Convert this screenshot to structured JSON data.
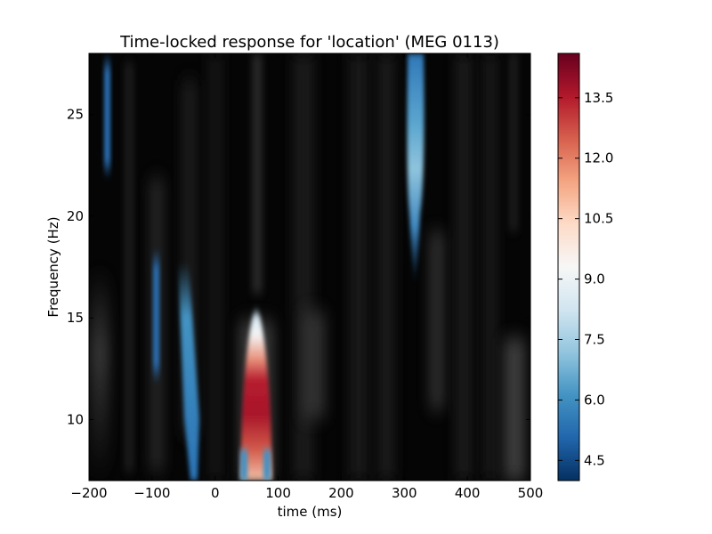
{
  "chart_data": {
    "type": "heatmap",
    "title": "Time-locked response for 'location' (MEG 0113)",
    "xlabel": "time (ms)",
    "ylabel": "Frequency (Hz)",
    "xlim": [
      -200,
      500
    ],
    "ylim": [
      7,
      28
    ],
    "xticks": [
      -200,
      -100,
      0,
      100,
      200,
      300,
      400,
      500
    ],
    "yticks": [
      10,
      15,
      20,
      25
    ],
    "colorbar": {
      "colormap": "RdBu_r",
      "range": [
        4.0,
        14.6
      ],
      "ticks": [
        4.5,
        6.0,
        7.5,
        9.0,
        10.5,
        12.0,
        13.5
      ]
    },
    "masking": "only significant clusters shown in colour; remaining time-frequency points shown in grayscale",
    "significant_clusters": [
      {
        "time_ms": [
          -178,
          -165
        ],
        "freq_hz": [
          21.5,
          28
        ],
        "peak_value": 5.0
      },
      {
        "time_ms": [
          -98,
          -88
        ],
        "freq_hz": [
          11.5,
          17.5
        ],
        "peak_value": 5.0
      },
      {
        "time_ms": [
          -58,
          -22
        ],
        "freq_hz": [
          7,
          17
        ],
        "peak_value": 5.5
      },
      {
        "time_ms": [
          38,
          95
        ],
        "freq_hz": [
          7,
          15.5
        ],
        "peak_value": 14.5
      },
      {
        "time_ms": [
          305,
          338
        ],
        "freq_hz": [
          17,
          28
        ],
        "peak_value": 7.5
      }
    ]
  }
}
